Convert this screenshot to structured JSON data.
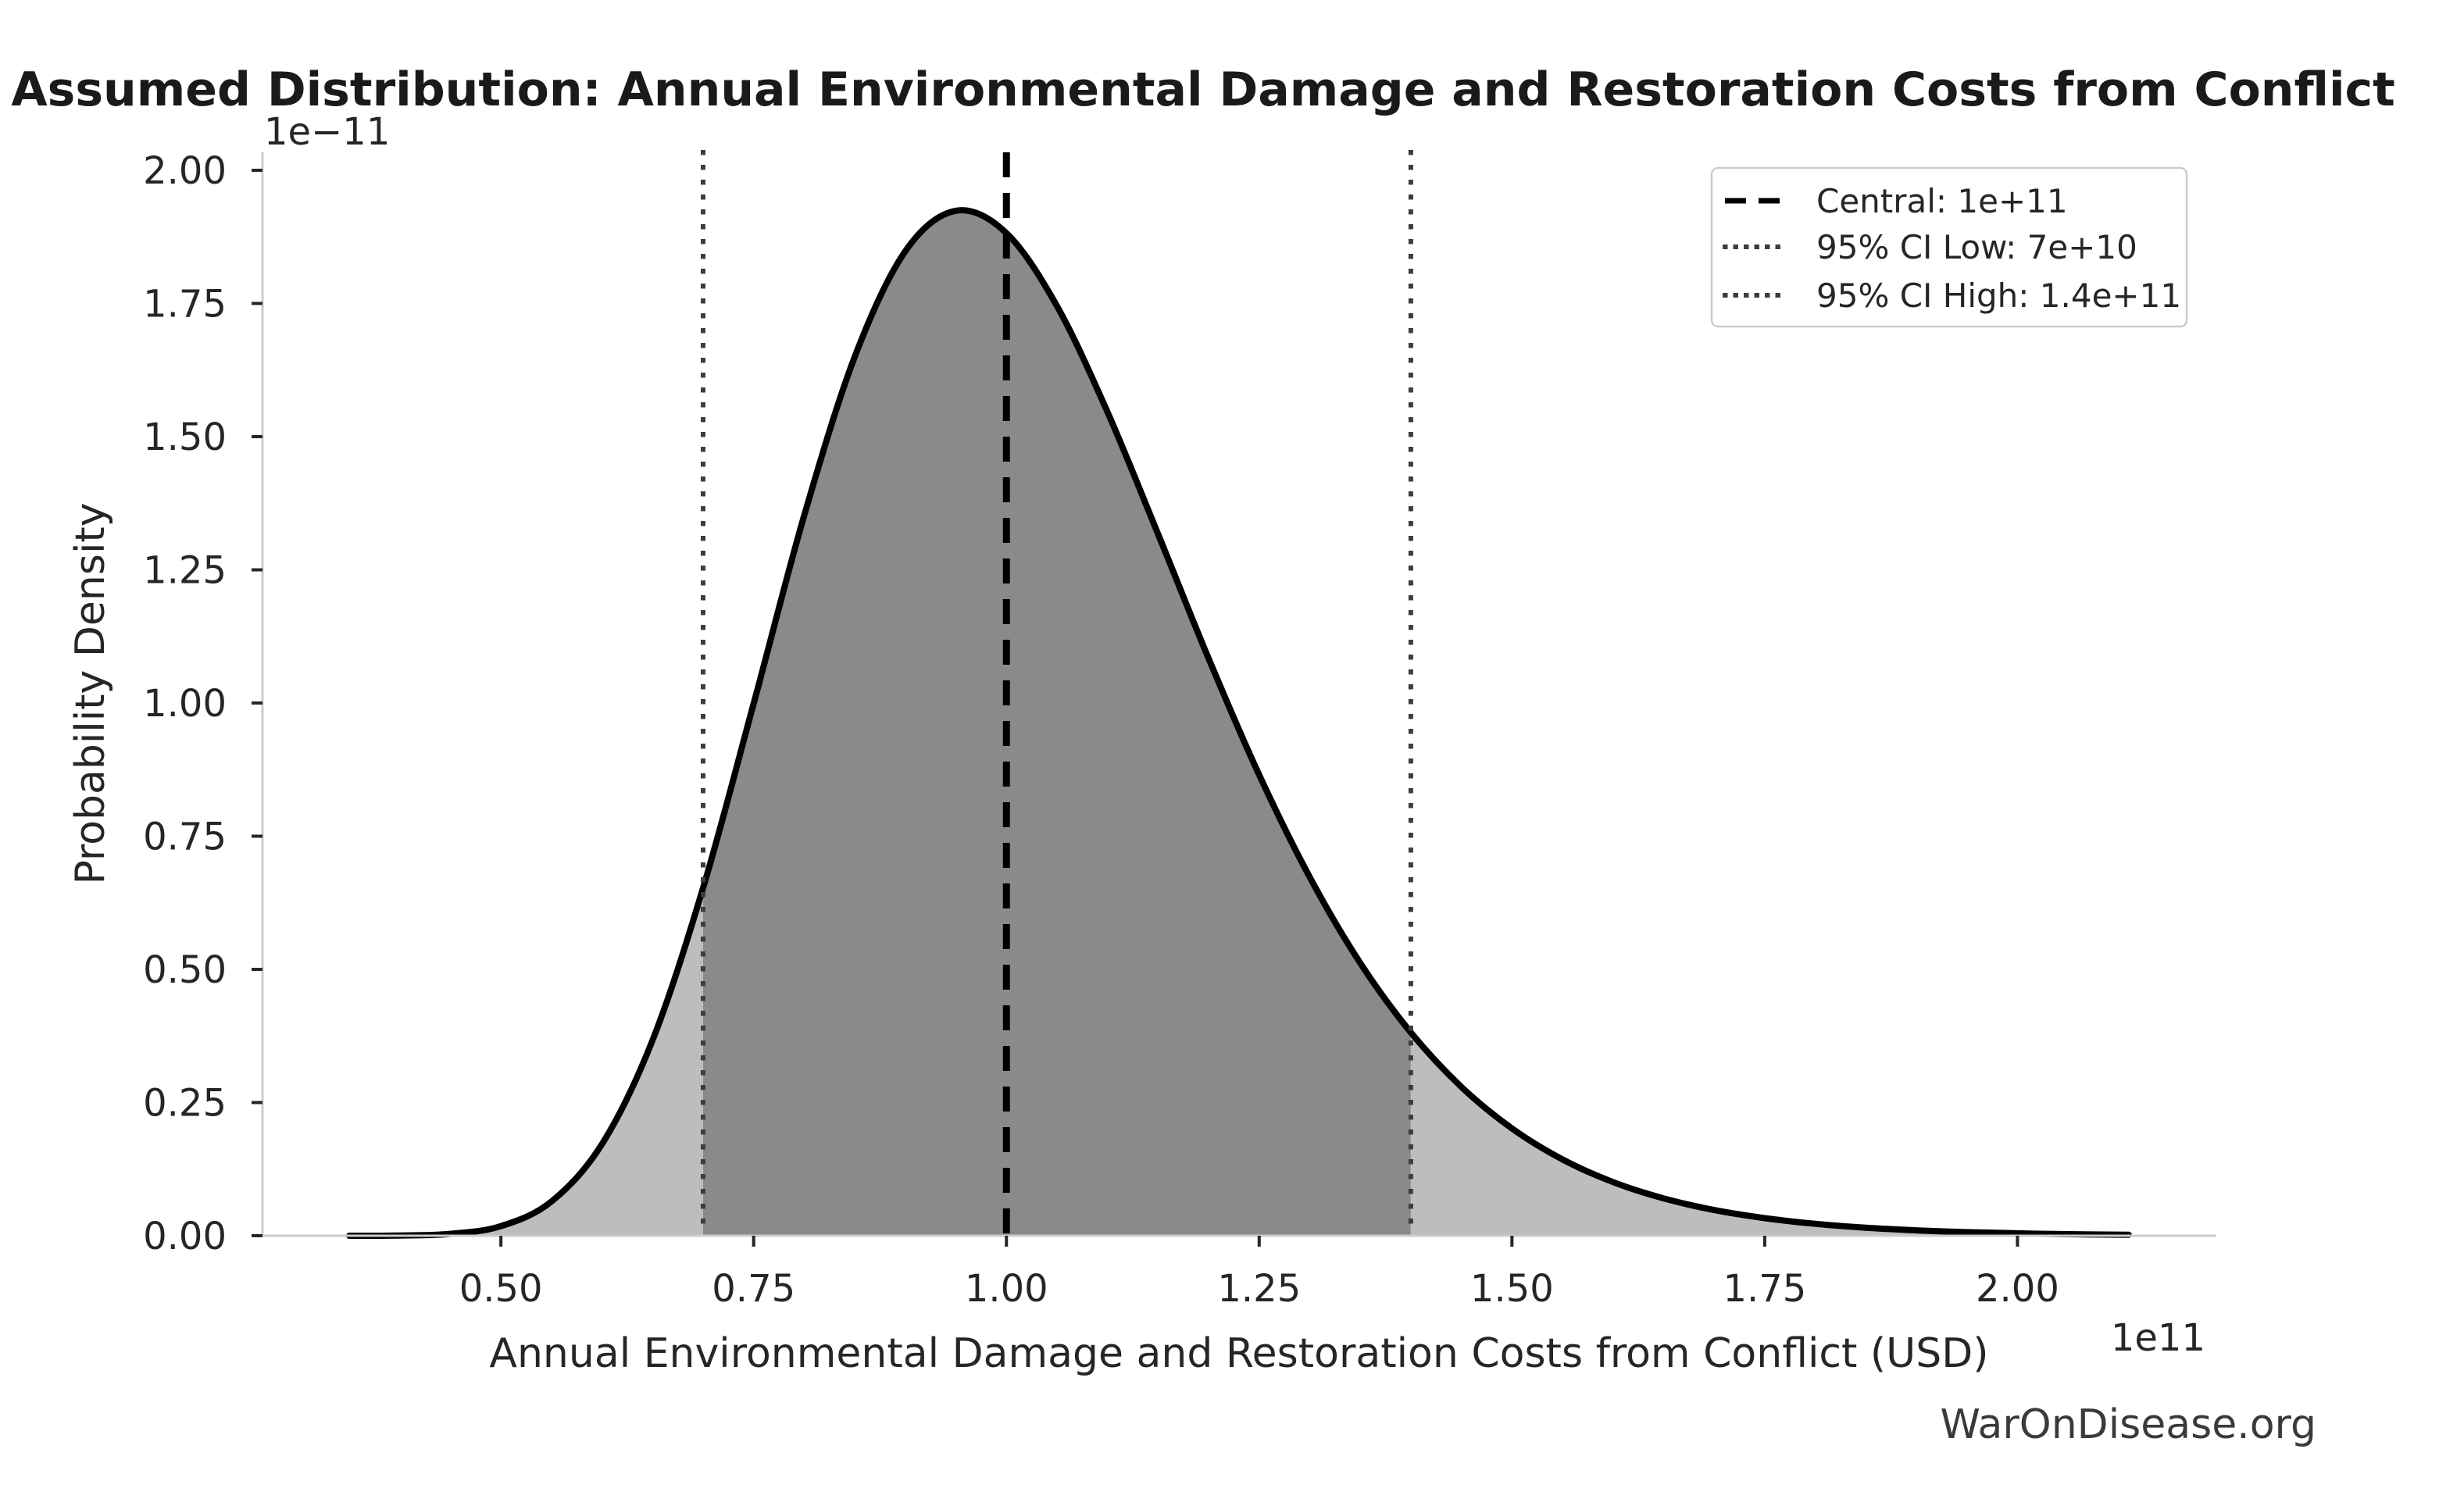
{
  "chart_data": {
    "type": "area",
    "title": "Assumed Distribution: Annual Environmental Damage and Restoration Costs from Conflict",
    "xlabel": "Annual Environmental Damage and Restoration Costs from Conflict (USD)",
    "ylabel": "Probability Density",
    "x_offset_label": "1e11",
    "y_offset_label": "1e−11",
    "watermark": "WarOnDisease.org",
    "grid": false,
    "legend_position": "upper right",
    "xlim": [
      0.2642,
      2.1967
    ],
    "ylim": [
      0,
      2.0337
    ],
    "x_ticks": [
      {
        "v": 0.5,
        "label": "0.50"
      },
      {
        "v": 0.75,
        "label": "0.75"
      },
      {
        "v": 1.0,
        "label": "1.00"
      },
      {
        "v": 1.25,
        "label": "1.25"
      },
      {
        "v": 1.5,
        "label": "1.50"
      },
      {
        "v": 1.75,
        "label": "1.75"
      },
      {
        "v": 2.0,
        "label": "2.00"
      }
    ],
    "y_ticks": [
      {
        "v": 0.0,
        "label": "0.00"
      },
      {
        "v": 0.25,
        "label": "0.25"
      },
      {
        "v": 0.5,
        "label": "0.50"
      },
      {
        "v": 0.75,
        "label": "0.75"
      },
      {
        "v": 1.0,
        "label": "1.00"
      },
      {
        "v": 1.25,
        "label": "1.25"
      },
      {
        "v": 1.5,
        "label": "1.50"
      },
      {
        "v": 1.75,
        "label": "1.75"
      },
      {
        "v": 2.0,
        "label": "2.00"
      }
    ],
    "distribution": {
      "family": "lognormal",
      "central": "1e+11",
      "ci_low": "7e+10",
      "ci_high": "1.4e+11"
    },
    "ci_region": [
      0.7,
      1.4
    ],
    "curve": {
      "x": [
        0.35,
        0.4,
        0.45,
        0.5,
        0.55,
        0.6,
        0.65,
        0.7,
        0.75,
        0.8,
        0.85,
        0.9,
        0.95,
        1.0,
        1.05,
        1.1,
        1.15,
        1.2,
        1.25,
        1.3,
        1.35,
        1.4,
        1.45,
        1.5,
        1.55,
        1.6,
        1.65,
        1.7,
        1.75,
        1.8,
        1.85,
        1.9,
        1.95,
        2.0,
        2.05,
        2.11
      ],
      "y": [
        0.0,
        0.0004,
        0.0035,
        0.018,
        0.0642,
        0.1721,
        0.367,
        0.653,
        0.999,
        1.352,
        1.65,
        1.848,
        1.924,
        1.882,
        1.745,
        1.546,
        1.317,
        1.0834,
        0.8651,
        0.6731,
        0.5118,
        0.3815,
        0.2793,
        0.2014,
        0.1433,
        0.1007,
        0.0701,
        0.0483,
        0.033,
        0.0224,
        0.0151,
        0.0101,
        0.0068,
        0.0045,
        0.003,
        0.0018
      ]
    },
    "legend": [
      {
        "label": "Central: 1e+11",
        "style": "dashed",
        "color": "#000000",
        "value_x": 1.0
      },
      {
        "label": "95% CI Low: 7e+10",
        "style": "dotted",
        "color": "#3d3d3d",
        "value_x": 0.7
      },
      {
        "label": "95% CI High: 1.4e+11",
        "style": "dotted",
        "color": "#3d3d3d",
        "value_x": 1.4
      }
    ],
    "colors": {
      "curve": "#000000",
      "fill_ci": "#8a8a8a",
      "fill_tails": "#bdbdbd",
      "central_line": "#000000",
      "ci_line": "#3d3d3d",
      "spine": "#cccccc",
      "tick": "#262626",
      "text": "#262626",
      "watermark": "#3a3a3a",
      "legend_border": "#cccccc"
    }
  }
}
